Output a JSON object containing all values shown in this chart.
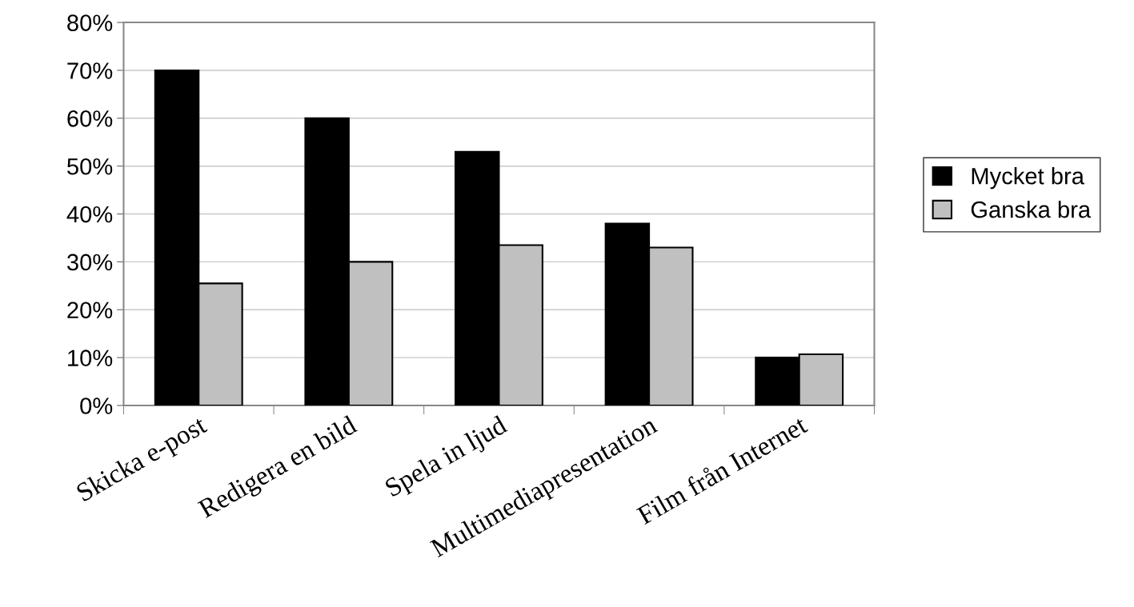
{
  "chart_data": {
    "type": "bar",
    "categories": [
      "Skicka e-post",
      "Redigera en bild",
      "Spela in ljud",
      "Multimediapresentation",
      "Film från Internet"
    ],
    "series": [
      {
        "name": "Mycket bra",
        "color": "#000000",
        "values": [
          70,
          60,
          53,
          38,
          10
        ]
      },
      {
        "name": "Ganska bra",
        "color": "#c0c0c0",
        "values": [
          25.5,
          30,
          33.5,
          33,
          10.7
        ]
      }
    ],
    "ylim": [
      0,
      80
    ],
    "yticks": [
      {
        "value": 0,
        "label": "0%"
      },
      {
        "value": 10,
        "label": "10%"
      },
      {
        "value": 20,
        "label": "20%"
      },
      {
        "value": 30,
        "label": "30%"
      },
      {
        "value": 40,
        "label": "40%"
      },
      {
        "value": 50,
        "label": "50%"
      },
      {
        "value": 60,
        "label": "60%"
      },
      {
        "value": 70,
        "label": "70%"
      },
      {
        "value": 80,
        "label": "80%"
      }
    ],
    "grid": "y",
    "legend": "right"
  }
}
